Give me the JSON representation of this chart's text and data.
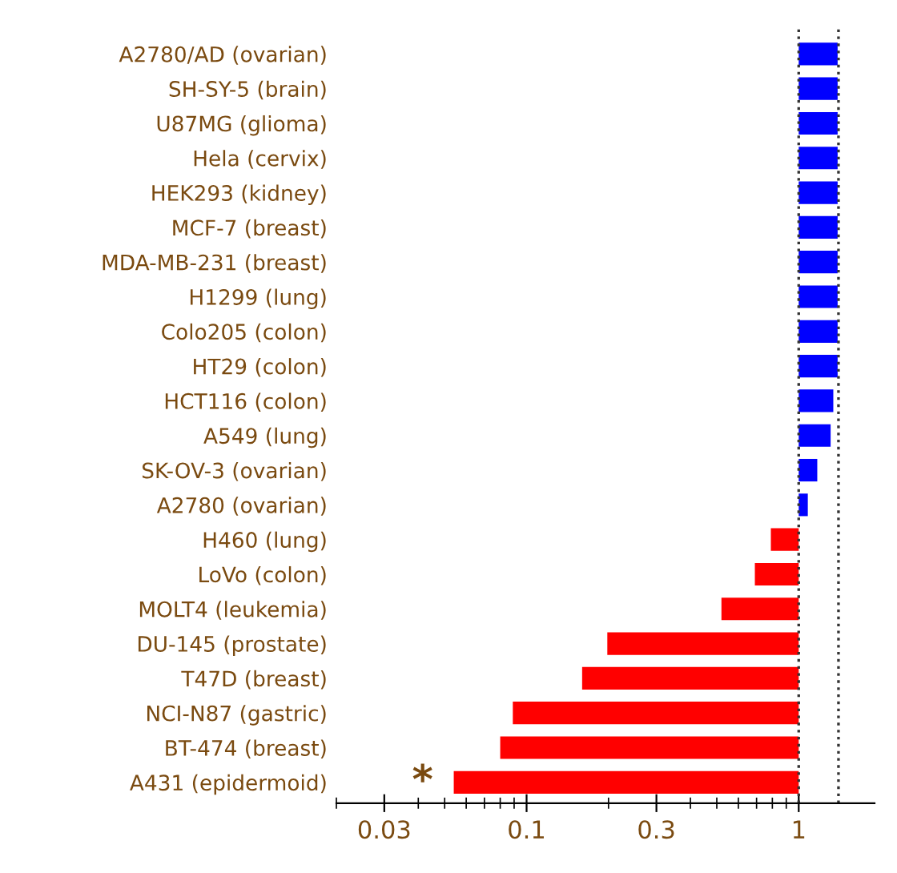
{
  "chart_data": {
    "type": "bar",
    "orientation": "horizontal",
    "log": "x",
    "categories": [
      "A2780/AD (ovarian)",
      "SH-SY-5 (brain)",
      "U87MG (glioma)",
      "Hela (cervix)",
      "HEK293 (kidney)",
      "MCF-7 (breast)",
      "MDA-MB-231 (breast)",
      "H1299 (lung)",
      "Colo205 (colon)",
      "HT29 (colon)",
      "HCT116 (colon)",
      "A549 (lung)",
      "SK-OV-3 (ovarian)",
      "A2780 (ovarian)",
      "H460 (lung)",
      "LoVo (colon)",
      "MOLT4 (leukemia)",
      "DU-145 (prostate)",
      "T47D (breast)",
      "NCI-N87 (gastric)",
      "BT-474 (breast)",
      "A431 (epidermoid)"
    ],
    "base": [
      1,
      1,
      1,
      1,
      1,
      1,
      1,
      1,
      1,
      1,
      1,
      1,
      1,
      1,
      1,
      1,
      1,
      1,
      1,
      1,
      1,
      1
    ],
    "values": [
      0.39,
      0.39,
      0.39,
      0.39,
      0.39,
      0.39,
      0.39,
      0.39,
      0.39,
      0.39,
      0.34,
      0.31,
      0.17,
      0.08,
      -0.21,
      -0.31,
      -0.48,
      -0.802,
      -0.84,
      -0.911,
      -0.92,
      -0.946
    ],
    "colors": [
      "#0000ff",
      "#0000ff",
      "#0000ff",
      "#0000ff",
      "#0000ff",
      "#0000ff",
      "#0000ff",
      "#0000ff",
      "#0000ff",
      "#0000ff",
      "#0000ff",
      "#0000ff",
      "#0000ff",
      "#0000ff",
      "#ff0000",
      "#ff0000",
      "#ff0000",
      "#ff0000",
      "#ff0000",
      "#ff0000",
      "#ff0000",
      "#ff0000"
    ],
    "xlim": [
      0.02,
      1.9
    ],
    "xticks": [
      0.03,
      0.1,
      0.3,
      1
    ],
    "ref_lines": [
      {
        "axis": "x",
        "value": 1,
        "line_style": "dotted",
        "color": "#333333"
      },
      {
        "axis": "x",
        "value": 1.4,
        "line_style": "dotted",
        "color": "#333333"
      }
    ],
    "annotations": [
      "*"
    ],
    "grid": false,
    "legend": false
  }
}
